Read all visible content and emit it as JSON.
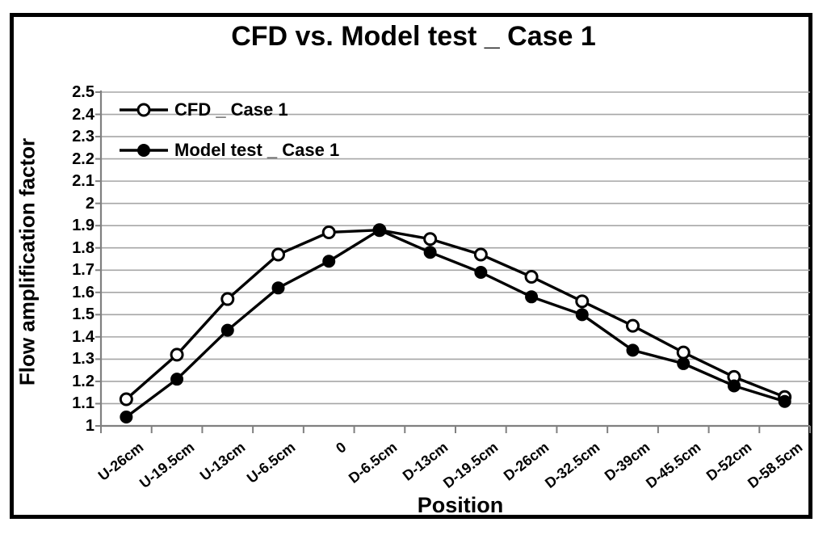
{
  "chart_data": {
    "type": "line",
    "title": "CFD vs. Model test _ Case 1",
    "xlabel": "Position",
    "ylabel": "Flow amplification factor",
    "ylim": [
      1,
      2.5
    ],
    "ytick_step": 0.1,
    "yticks": [
      "2.5",
      "2.4",
      "2.3",
      "2.2",
      "2.1",
      "2",
      "1.9",
      "1.8",
      "1.7",
      "1.6",
      "1.5",
      "1.4",
      "1.3",
      "1.2",
      "1.1",
      "1"
    ],
    "categories": [
      "U-26cm",
      "U-19.5cm",
      "U-13cm",
      "U-6.5cm",
      "0",
      "D-6.5cm",
      "D-13cm",
      "D-19.5cm",
      "D-26cm",
      "D-32.5cm",
      "D-39cm",
      "D-45.5cm",
      "D-52cm",
      "D-58.5cm"
    ],
    "series": [
      {
        "name": "CFD _ Case 1",
        "marker": "open-circle",
        "values": [
          1.12,
          1.32,
          1.57,
          1.77,
          1.87,
          1.88,
          1.84,
          1.77,
          1.67,
          1.56,
          1.45,
          1.33,
          1.22,
          1.13
        ]
      },
      {
        "name": "Model test _ Case 1",
        "marker": "filled-circle",
        "values": [
          1.04,
          1.21,
          1.43,
          1.62,
          1.74,
          1.88,
          1.78,
          1.69,
          1.58,
          1.5,
          1.34,
          1.28,
          1.18,
          1.11
        ]
      }
    ],
    "grid": "horizontal",
    "legend_position": "top-left-inside",
    "colors": {
      "line": "#000000",
      "grid": "#a6a6a6",
      "axis": "#808080",
      "text": "#000000",
      "background": "#ffffff"
    }
  }
}
